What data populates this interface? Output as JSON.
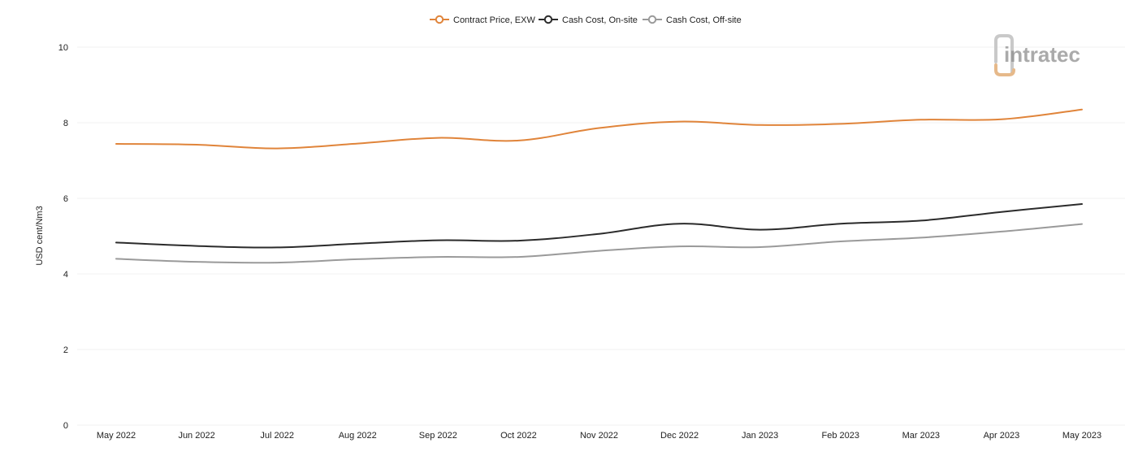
{
  "chart_data": {
    "type": "line",
    "title": "",
    "xlabel": "",
    "ylabel": "USD cent/Nm3",
    "ylim": [
      0,
      10
    ],
    "yticks": [
      0,
      2,
      4,
      6,
      8,
      10
    ],
    "grid": true,
    "legend_position": "top-center",
    "categories": [
      "May 2022",
      "Jun 2022",
      "Jul 2022",
      "Aug 2022",
      "Sep 2022",
      "Oct 2022",
      "Nov 2022",
      "Dec 2022",
      "Jan 2023",
      "Feb 2023",
      "Mar 2023",
      "Apr 2023",
      "May 2023"
    ],
    "series": [
      {
        "name": "Contract Price, EXW",
        "color": "#e0843a",
        "values": [
          7.44,
          7.42,
          7.32,
          7.45,
          7.6,
          7.53,
          7.86,
          8.03,
          7.94,
          7.97,
          8.08,
          8.09,
          8.35
        ]
      },
      {
        "name": "Cash Cost, On-site",
        "color": "#2b2b2b",
        "values": [
          4.83,
          4.74,
          4.7,
          4.8,
          4.89,
          4.88,
          5.06,
          5.33,
          5.17,
          5.33,
          5.41,
          5.64,
          5.85
        ]
      },
      {
        "name": "Cash Cost, Off-site",
        "color": "#9a9a9a",
        "values": [
          4.4,
          4.32,
          4.3,
          4.39,
          4.45,
          4.45,
          4.61,
          4.73,
          4.71,
          4.86,
          4.96,
          5.12,
          5.32
        ]
      }
    ]
  },
  "logo": {
    "text": "intratec",
    "color": "#8e8e8e",
    "accent_color": "#e6b98a"
  }
}
